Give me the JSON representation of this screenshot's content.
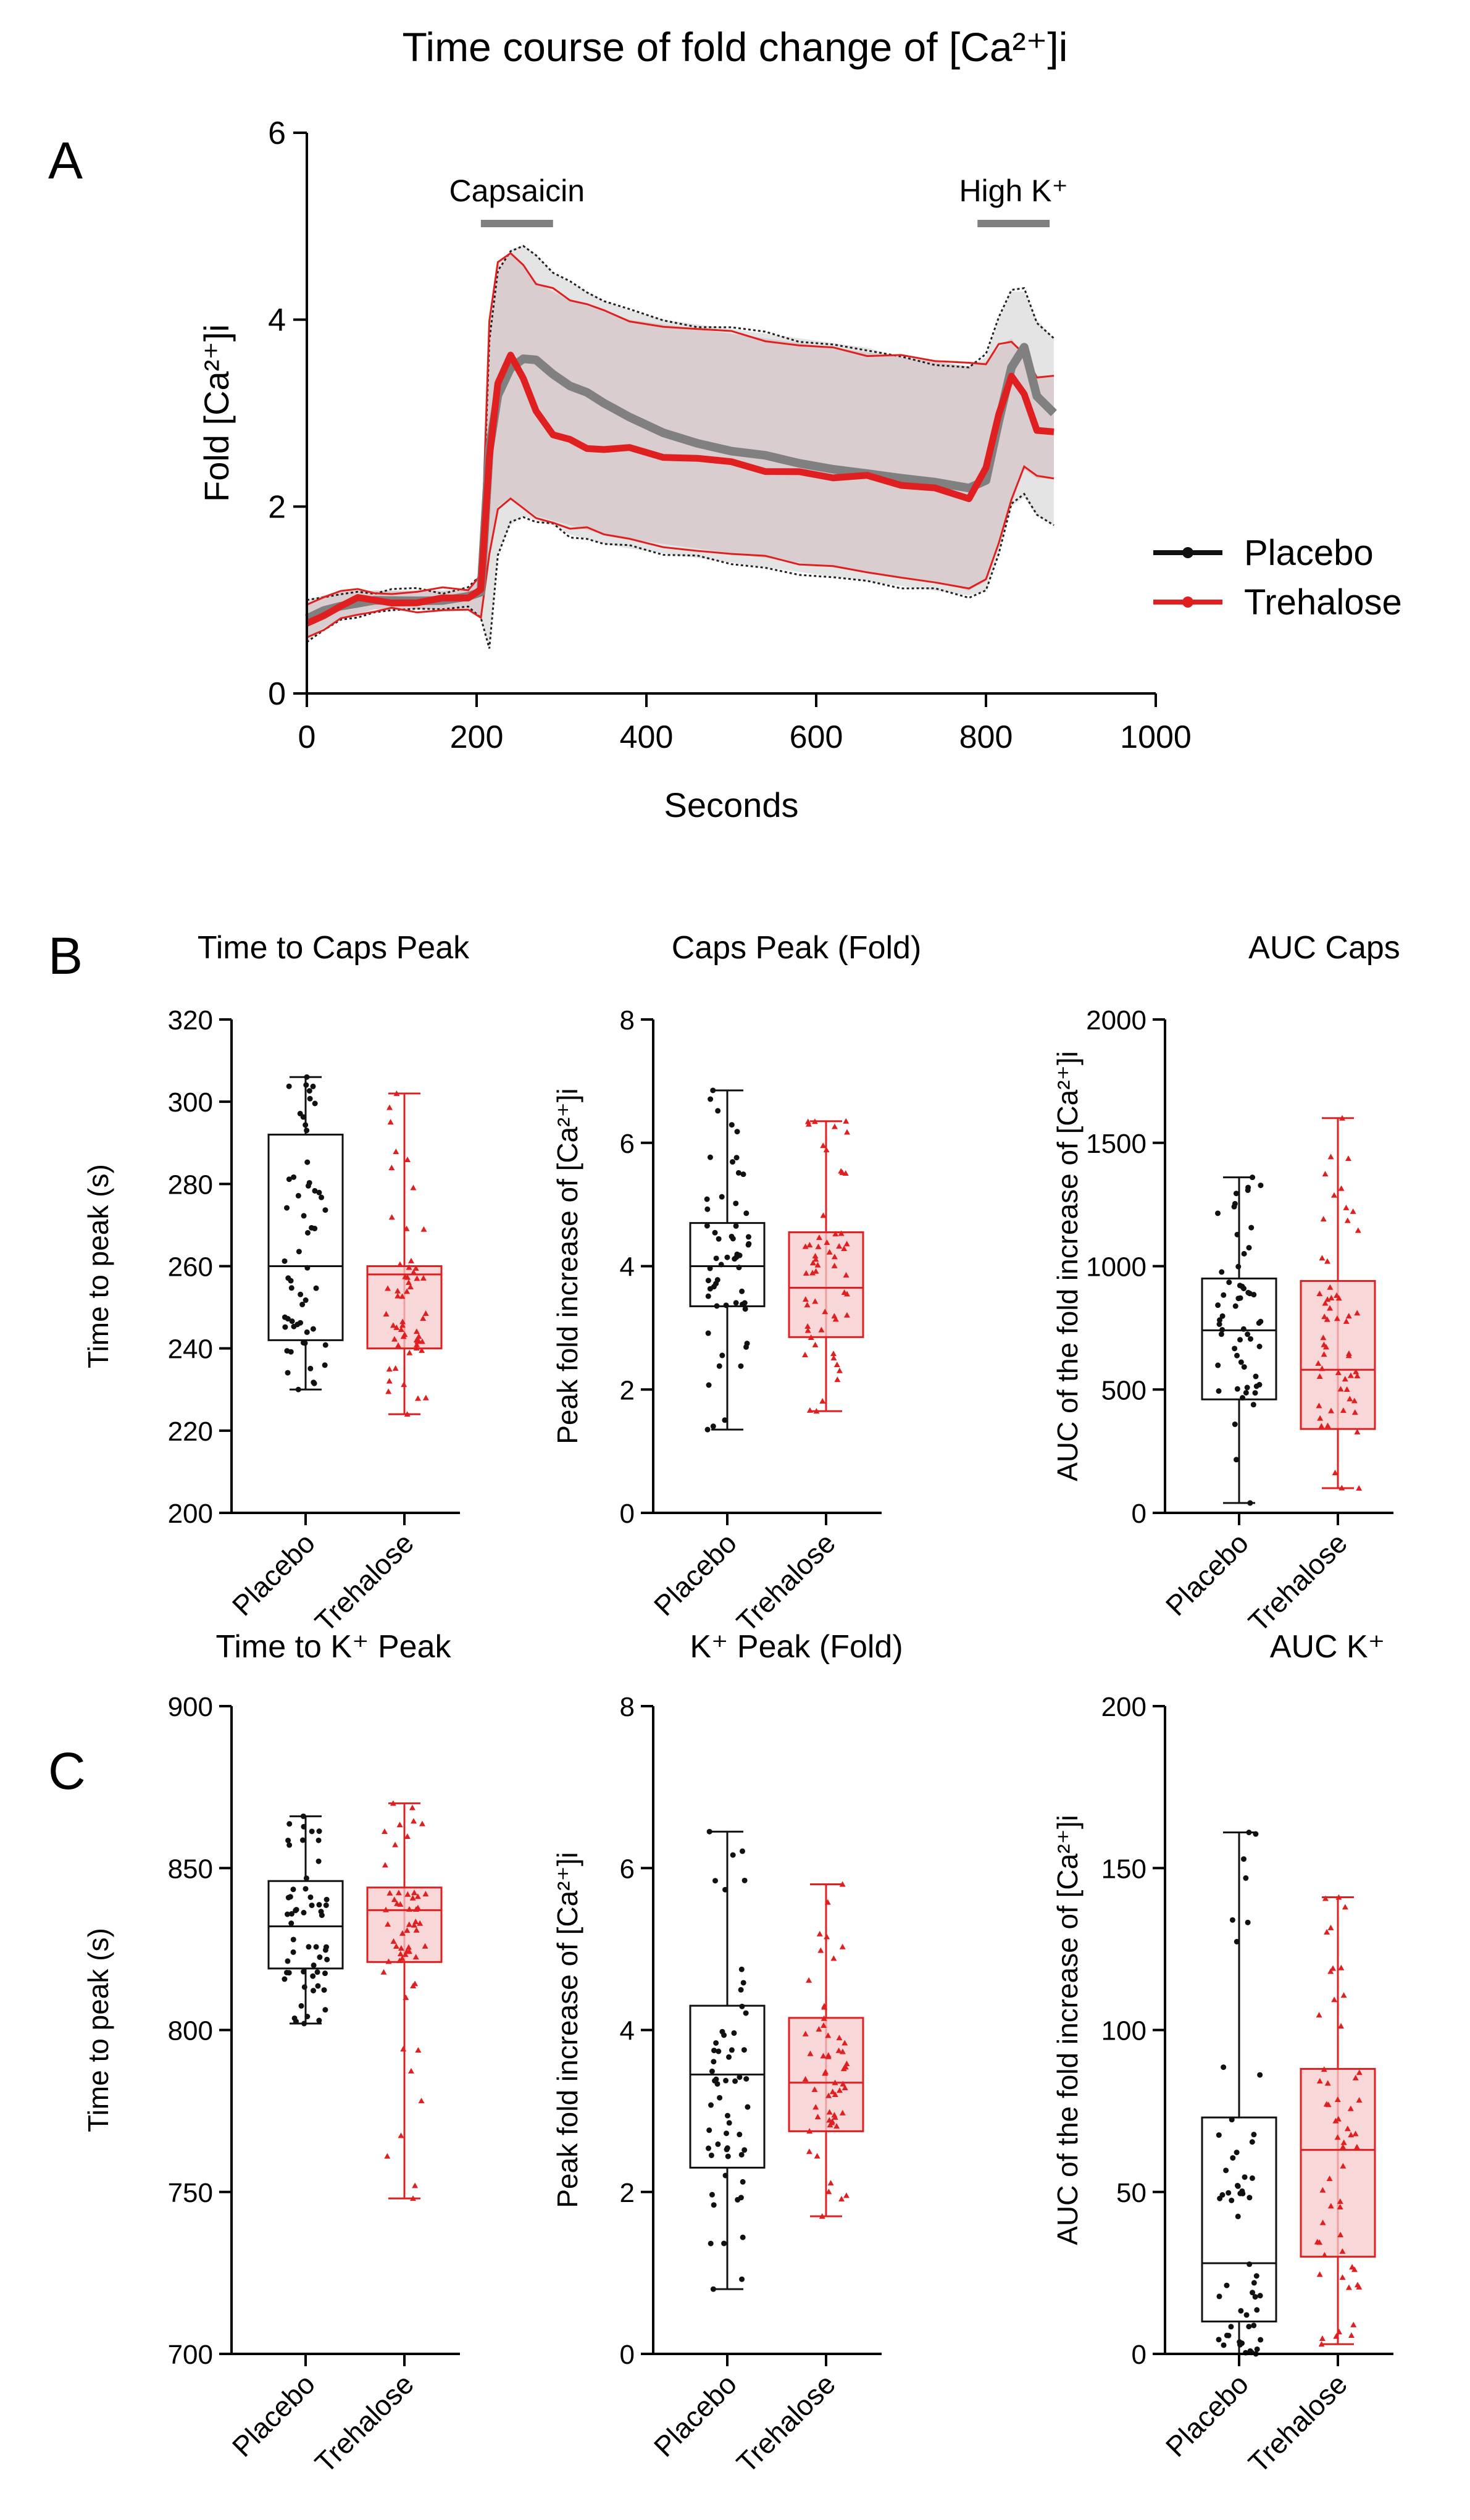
{
  "figure": {
    "title": "Time course of fold change of [Ca²⁺]i",
    "panel_labels": [
      "A",
      "B",
      "C"
    ],
    "colors": {
      "placebo": "#111111",
      "trehalose": "#e02020",
      "band": "#c7a3a8",
      "grey": "#808080"
    }
  },
  "chart_data": [
    {
      "id": "A",
      "type": "line",
      "title": "",
      "xlabel": "Seconds",
      "ylabel": "Fold [Ca²⁺]i",
      "xlim": [
        0,
        1000
      ],
      "ylim": [
        0,
        6
      ],
      "xticks": [
        0,
        200,
        400,
        600,
        800,
        1000
      ],
      "yticks": [
        0,
        2,
        4,
        6
      ],
      "annotations": [
        {
          "text": "Capsaicin",
          "x_start": 205,
          "x_end": 290
        },
        {
          "text": "High K⁺",
          "x_start": 790,
          "x_end": 875
        }
      ],
      "legend": {
        "placement": "right",
        "entries": [
          "Placebo",
          "Trehalose"
        ]
      },
      "x": [
        0,
        20,
        40,
        60,
        80,
        100,
        130,
        160,
        190,
        205,
        215,
        225,
        240,
        255,
        270,
        290,
        310,
        330,
        350,
        380,
        420,
        460,
        500,
        540,
        580,
        620,
        660,
        700,
        740,
        780,
        800,
        815,
        830,
        845,
        860,
        880
      ],
      "series": [
        {
          "name": "Placebo",
          "role": "mean",
          "values": [
            0.8,
            0.9,
            0.95,
            0.98,
            1.0,
            1.0,
            1.0,
            1.0,
            1.02,
            1.1,
            2.6,
            3.2,
            3.5,
            3.6,
            3.55,
            3.4,
            3.3,
            3.2,
            3.1,
            2.95,
            2.8,
            2.7,
            2.6,
            2.55,
            2.45,
            2.4,
            2.35,
            2.3,
            2.25,
            2.2,
            2.3,
            2.9,
            3.5,
            3.7,
            3.2,
            3.0
          ]
        },
        {
          "name": "Placebo",
          "role": "upper",
          "values": [
            1.0,
            1.05,
            1.08,
            1.1,
            1.1,
            1.1,
            1.1,
            1.1,
            1.12,
            1.3,
            3.8,
            4.5,
            4.75,
            4.8,
            4.7,
            4.5,
            4.4,
            4.3,
            4.2,
            4.1,
            4.0,
            3.95,
            3.9,
            3.85,
            3.8,
            3.75,
            3.7,
            3.6,
            3.55,
            3.5,
            3.6,
            4.0,
            4.3,
            4.3,
            4.0,
            3.8
          ]
        },
        {
          "name": "Placebo",
          "role": "lower",
          "values": [
            0.55,
            0.7,
            0.8,
            0.85,
            0.9,
            0.9,
            0.9,
            0.9,
            0.92,
            0.8,
            0.5,
            1.5,
            1.8,
            1.9,
            1.85,
            1.8,
            1.7,
            1.65,
            1.6,
            1.55,
            1.5,
            1.45,
            1.4,
            1.35,
            1.3,
            1.25,
            1.2,
            1.15,
            1.1,
            1.05,
            1.1,
            1.5,
            2.0,
            2.1,
            1.9,
            1.8
          ]
        },
        {
          "name": "Trehalose",
          "role": "mean",
          "values": [
            0.75,
            0.85,
            0.95,
            1.0,
            1.0,
            1.0,
            1.0,
            1.0,
            1.0,
            1.1,
            2.5,
            3.3,
            3.6,
            3.4,
            3.0,
            2.8,
            2.7,
            2.65,
            2.6,
            2.6,
            2.55,
            2.5,
            2.45,
            2.4,
            2.35,
            2.3,
            2.3,
            2.25,
            2.2,
            2.1,
            2.4,
            3.0,
            3.4,
            3.2,
            2.8,
            2.8
          ]
        },
        {
          "name": "Trehalose",
          "role": "upper",
          "values": [
            0.95,
            1.05,
            1.1,
            1.1,
            1.1,
            1.1,
            1.1,
            1.1,
            1.1,
            1.3,
            4.0,
            4.6,
            4.7,
            4.6,
            4.4,
            4.3,
            4.2,
            4.15,
            4.1,
            4.0,
            3.95,
            3.9,
            3.85,
            3.8,
            3.75,
            3.7,
            3.65,
            3.6,
            3.55,
            3.5,
            3.55,
            3.7,
            3.8,
            3.6,
            3.4,
            3.4
          ]
        },
        {
          "name": "Trehalose",
          "role": "lower",
          "values": [
            0.6,
            0.7,
            0.8,
            0.85,
            0.9,
            0.9,
            0.9,
            0.9,
            0.9,
            0.8,
            1.5,
            2.0,
            2.1,
            2.0,
            1.9,
            1.85,
            1.8,
            1.75,
            1.7,
            1.65,
            1.6,
            1.55,
            1.5,
            1.45,
            1.4,
            1.35,
            1.3,
            1.25,
            1.2,
            1.1,
            1.2,
            1.6,
            2.1,
            2.4,
            2.3,
            2.3
          ]
        }
      ]
    },
    {
      "id": "B1",
      "type": "box",
      "title": "Time to Caps Peak",
      "ylabel": "Time to peak (s)",
      "ylim": [
        200,
        320
      ],
      "yticks": [
        200,
        220,
        240,
        260,
        280,
        300,
        320
      ],
      "categories": [
        "Placebo",
        "Trehalose"
      ],
      "boxes": [
        {
          "group": "Placebo",
          "min": 230,
          "q1": 242,
          "median": 260,
          "q3": 292,
          "max": 306
        },
        {
          "group": "Trehalose",
          "min": 224,
          "q1": 240,
          "median": 258,
          "q3": 260,
          "max": 302
        }
      ]
    },
    {
      "id": "B2",
      "type": "box",
      "title": "Caps Peak (Fold)",
      "ylabel": "Peak fold increase of [Ca²⁺]i",
      "ylim": [
        0,
        8
      ],
      "yticks": [
        0,
        2,
        4,
        6,
        8
      ],
      "categories": [
        "Placebo",
        "Trehalose"
      ],
      "boxes": [
        {
          "group": "Placebo",
          "min": 1.35,
          "q1": 3.35,
          "median": 4.0,
          "q3": 4.7,
          "max": 6.85
        },
        {
          "group": "Trehalose",
          "min": 1.65,
          "q1": 2.85,
          "median": 3.65,
          "q3": 4.55,
          "max": 6.35
        }
      ]
    },
    {
      "id": "B3",
      "type": "box",
      "title": "AUC Caps",
      "ylabel": "AUC of the fold increase of [Ca²⁺]i",
      "ylim": [
        0,
        2000
      ],
      "yticks": [
        0,
        500,
        1000,
        1500,
        2000
      ],
      "categories": [
        "Placebo",
        "Trehalose"
      ],
      "boxes": [
        {
          "group": "Placebo",
          "min": 40,
          "q1": 460,
          "median": 740,
          "q3": 950,
          "max": 1360
        },
        {
          "group": "Trehalose",
          "min": 100,
          "q1": 340,
          "median": 580,
          "q3": 940,
          "max": 1600
        }
      ]
    },
    {
      "id": "C1",
      "type": "box",
      "title": "Time to K⁺ Peak",
      "ylabel": "Time to peak (s)",
      "ylim": [
        700,
        900
      ],
      "yticks": [
        700,
        750,
        800,
        850,
        900
      ],
      "categories": [
        "Placebo",
        "Trehalose"
      ],
      "boxes": [
        {
          "group": "Placebo",
          "min": 802,
          "q1": 819,
          "median": 832,
          "q3": 846,
          "max": 866
        },
        {
          "group": "Trehalose",
          "min": 748,
          "q1": 821,
          "median": 837,
          "q3": 844,
          "max": 870
        }
      ]
    },
    {
      "id": "C2",
      "type": "box",
      "title": "K⁺ Peak (Fold)",
      "ylabel": "Peak fold increase of [Ca²⁺]i",
      "ylim": [
        0,
        8
      ],
      "yticks": [
        0,
        2,
        4,
        6,
        8
      ],
      "categories": [
        "Placebo",
        "Trehalose"
      ],
      "boxes": [
        {
          "group": "Placebo",
          "min": 0.8,
          "q1": 2.3,
          "median": 3.45,
          "q3": 4.3,
          "max": 6.45
        },
        {
          "group": "Trehalose",
          "min": 1.7,
          "q1": 2.75,
          "median": 3.35,
          "q3": 4.15,
          "max": 5.8
        }
      ]
    },
    {
      "id": "C3",
      "type": "box",
      "title": "AUC K⁺",
      "ylabel": "AUC of the fold increase of [Ca²⁺]i",
      "ylim": [
        0,
        200
      ],
      "yticks": [
        0,
        50,
        100,
        150,
        200
      ],
      "categories": [
        "Placebo",
        "Trehalose"
      ],
      "boxes": [
        {
          "group": "Placebo",
          "min": 0,
          "q1": 10,
          "median": 28,
          "q3": 73,
          "max": 161
        },
        {
          "group": "Trehalose",
          "min": 3,
          "q1": 30,
          "median": 63,
          "q3": 88,
          "max": 141
        }
      ]
    }
  ]
}
